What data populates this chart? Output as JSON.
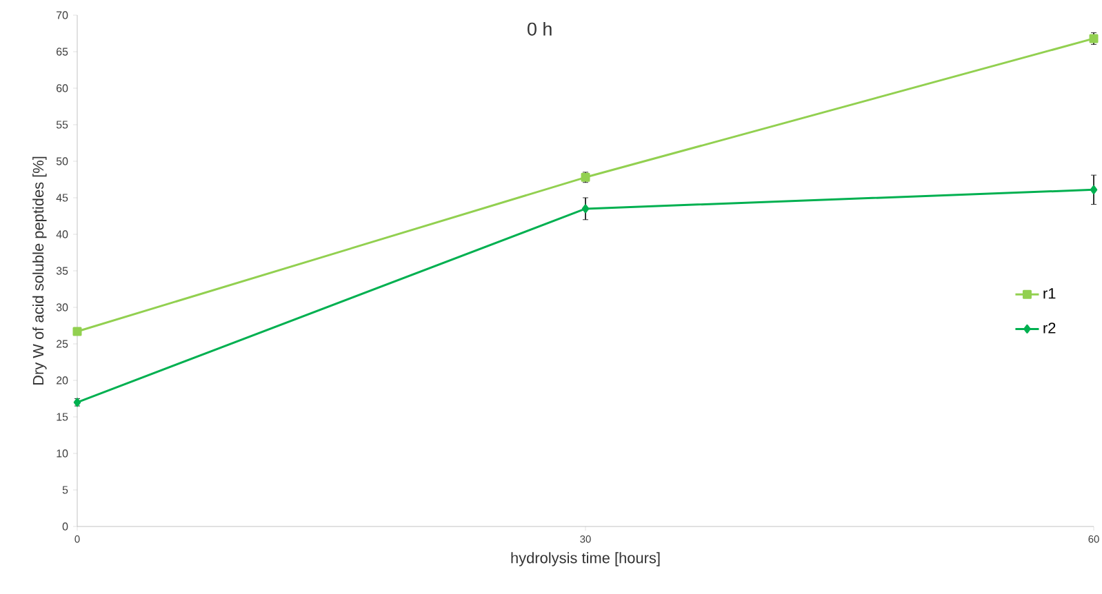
{
  "chart_data": {
    "type": "line",
    "title": "0 h",
    "xlabel": "hydrolysis time [hours]",
    "ylabel": "Dry W of acid soluble peptides [%]",
    "x": [
      0,
      30,
      60
    ],
    "series": [
      {
        "name": "r1",
        "color": "#92d050",
        "marker": "square",
        "values": [
          26.7,
          47.8,
          66.8
        ],
        "errors": [
          null,
          0.7,
          0.8
        ]
      },
      {
        "name": "r2",
        "color": "#00b050",
        "marker": "diamond",
        "values": [
          17.0,
          43.5,
          46.1
        ],
        "errors": [
          0.5,
          1.5,
          2.0
        ]
      }
    ],
    "xlim": [
      0,
      60
    ],
    "xticks": [
      0,
      30,
      60
    ],
    "ylim": [
      0,
      70
    ],
    "yticks": [
      0,
      5,
      10,
      15,
      20,
      25,
      30,
      35,
      40,
      45,
      50,
      55,
      60,
      65,
      70
    ],
    "grid": false,
    "legend": "right"
  }
}
